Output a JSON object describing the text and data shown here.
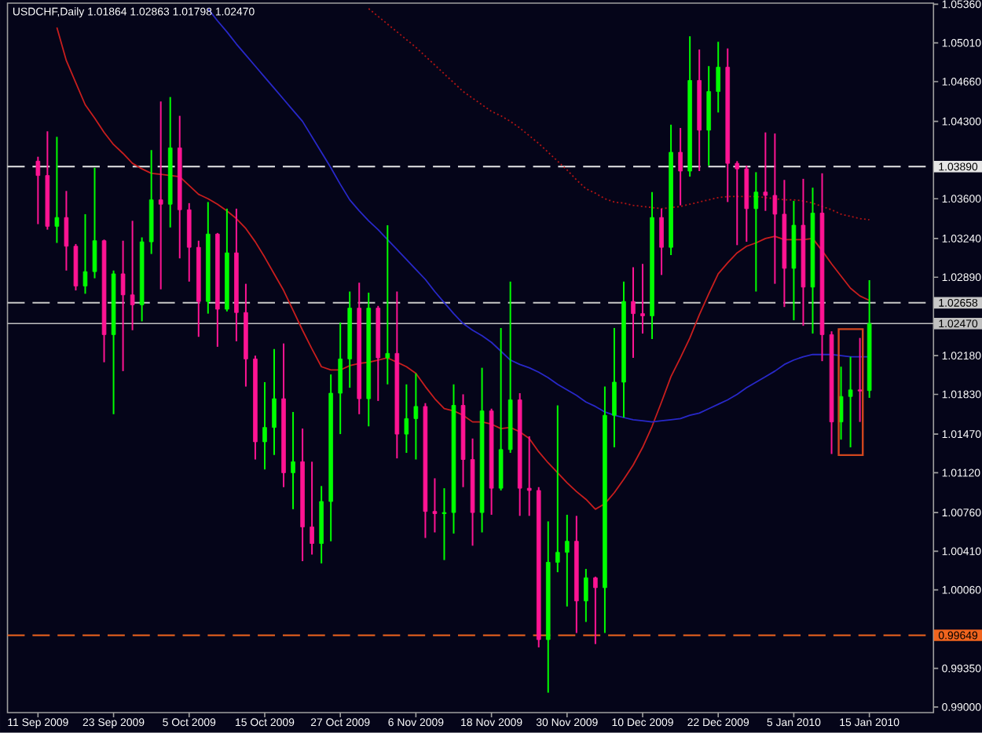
{
  "chart_data": {
    "type": "candlestick",
    "title": "USDCHF,Daily 1.01864 1.02863 1.01798 1.02470",
    "categories": [
      "11 Sep 2009",
      null,
      null,
      null,
      null,
      null,
      null,
      null,
      "23 Sep 2009",
      null,
      null,
      null,
      null,
      null,
      null,
      null,
      "5 Oct 2009",
      null,
      null,
      null,
      null,
      null,
      null,
      null,
      "15 Oct 2009",
      null,
      null,
      null,
      null,
      null,
      null,
      null,
      "27 Oct 2009",
      null,
      null,
      null,
      null,
      null,
      null,
      null,
      "6 Nov 2009",
      null,
      null,
      null,
      null,
      null,
      null,
      null,
      "18 Nov 2009",
      null,
      null,
      null,
      null,
      null,
      null,
      null,
      "30 Nov 2009",
      null,
      null,
      null,
      null,
      null,
      null,
      null,
      "10 Dec 2009",
      null,
      null,
      null,
      null,
      null,
      null,
      null,
      "22 Dec 2009",
      null,
      null,
      null,
      null,
      null,
      null,
      null,
      "5 Jan 2010",
      null,
      null,
      null,
      null,
      null,
      null,
      null,
      "15 Jan 2010"
    ],
    "ohlc": [
      [
        1.0394,
        1.0398,
        1.0337,
        1.0381
      ],
      [
        1.0381,
        1.0421,
        1.0332,
        1.0335
      ],
      [
        1.0335,
        1.0416,
        1.032,
        1.0343
      ],
      [
        1.0343,
        1.0367,
        1.0295,
        1.0317
      ],
      [
        1.0317,
        1.0319,
        1.0277,
        1.0281
      ],
      [
        1.0281,
        1.0346,
        1.0274,
        1.0294
      ],
      [
        1.0294,
        1.0388,
        1.0288,
        1.0322
      ],
      [
        1.0322,
        1.0323,
        1.0212,
        1.0237
      ],
      [
        1.0237,
        1.0295,
        1.0165,
        1.0292
      ],
      [
        1.0292,
        1.0322,
        1.0204,
        1.0273
      ],
      [
        1.0273,
        1.034,
        1.0241,
        1.0264
      ],
      [
        1.0264,
        1.0325,
        1.0249,
        1.0321
      ],
      [
        1.0321,
        1.0404,
        1.031,
        1.0359
      ],
      [
        1.0359,
        1.0448,
        1.0278,
        1.0355
      ],
      [
        1.0355,
        1.0452,
        1.0334,
        1.0406
      ],
      [
        1.0406,
        1.0435,
        1.0306,
        1.035
      ],
      [
        1.035,
        1.0356,
        1.0285,
        1.0316
      ],
      [
        1.0316,
        1.0322,
        1.0235,
        1.0267
      ],
      [
        1.0267,
        1.0357,
        1.0256,
        1.0328
      ],
      [
        1.0328,
        1.0329,
        1.0226,
        1.026
      ],
      [
        1.026,
        1.0351,
        1.0258,
        1.0311
      ],
      [
        1.0311,
        1.0351,
        1.0231,
        1.0257
      ],
      [
        1.0257,
        1.0283,
        1.019,
        1.0215
      ],
      [
        1.0215,
        1.0218,
        1.0124,
        1.014
      ],
      [
        1.014,
        1.0194,
        1.0115,
        1.0153
      ],
      [
        1.0153,
        1.0224,
        1.0128,
        1.0179
      ],
      [
        1.0179,
        1.0229,
        1.0099,
        1.0112
      ],
      [
        1.0112,
        1.0167,
        1.0079,
        1.0122
      ],
      [
        1.0122,
        1.0152,
        1.0032,
        1.0063
      ],
      [
        1.0063,
        1.0122,
        1.0038,
        1.0048
      ],
      [
        1.0048,
        1.01,
        1.003,
        1.0086
      ],
      [
        1.0086,
        1.0201,
        1.005,
        1.0184
      ],
      [
        1.0184,
        1.0248,
        1.0147,
        1.0215
      ],
      [
        1.0215,
        1.0276,
        1.0189,
        1.0261
      ],
      [
        1.0261,
        1.0284,
        1.0165,
        1.0179
      ],
      [
        1.0179,
        1.0275,
        1.0154,
        1.0261
      ],
      [
        1.0261,
        1.0263,
        1.0177,
        1.0216
      ],
      [
        1.0216,
        1.0336,
        1.0192,
        1.022
      ],
      [
        1.022,
        1.0276,
        1.0125,
        1.0147
      ],
      [
        1.0147,
        1.0192,
        1.013,
        1.0161
      ],
      [
        1.0161,
        1.0202,
        1.0124,
        1.0172
      ],
      [
        1.0172,
        1.0175,
        1.0053,
        1.0077
      ],
      [
        1.0077,
        1.0107,
        1.0058,
        1.0075
      ],
      [
        1.0075,
        1.0098,
        1.0033,
        1.0076
      ],
      [
        1.0076,
        1.0192,
        1.0057,
        1.0173
      ],
      [
        1.0173,
        1.0183,
        1.0099,
        1.0124
      ],
      [
        1.0124,
        1.0143,
        1.0046,
        1.0076
      ],
      [
        1.0076,
        1.0207,
        1.0058,
        1.0168
      ],
      [
        1.0168,
        1.017,
        1.0074,
        1.0098
      ],
      [
        1.0098,
        1.0243,
        1.0096,
        1.0133
      ],
      [
        1.0133,
        1.0285,
        1.013,
        1.0178
      ],
      [
        1.0178,
        1.0184,
        1.0073,
        1.0098
      ],
      [
        1.0098,
        1.0145,
        1.0073,
        1.0096
      ],
      [
        1.0096,
        1.0099,
        0.9954,
        0.9961
      ],
      [
        0.9961,
        1.0068,
        0.9913,
        1.0031
      ],
      [
        1.0031,
        1.0173,
        1.0022,
        1.004
      ],
      [
        1.004,
        1.0074,
        0.9991,
        1.005
      ],
      [
        1.005,
        1.0073,
        0.9967,
        0.9996
      ],
      [
        0.9996,
        1.0025,
        0.9977,
        1.0017
      ],
      [
        1.0017,
        1.0018,
        0.9957,
        1.0008
      ],
      [
        1.0008,
        1.019,
        0.9967,
        1.0164
      ],
      [
        1.0164,
        1.0243,
        1.0135,
        1.0194
      ],
      [
        1.0194,
        1.0285,
        1.0162,
        1.0267
      ],
      [
        1.0267,
        1.0298,
        1.0216,
        1.0256
      ],
      [
        1.0256,
        1.0301,
        1.0238,
        1.0254
      ],
      [
        1.0254,
        1.0366,
        1.0233,
        1.0343
      ],
      [
        1.0343,
        1.0351,
        1.0291,
        1.0316
      ],
      [
        1.0316,
        1.0427,
        1.0309,
        1.0402
      ],
      [
        1.0402,
        1.0424,
        1.0354,
        1.0385
      ],
      [
        1.0385,
        1.0507,
        1.038,
        1.0467
      ],
      [
        1.0467,
        1.0495,
        1.0385,
        1.0422
      ],
      [
        1.0422,
        1.048,
        1.039,
        1.0457
      ],
      [
        1.0457,
        1.0502,
        1.0438,
        1.0479
      ],
      [
        1.0479,
        1.0496,
        1.0357,
        1.0392
      ],
      [
        1.0392,
        1.0394,
        1.0318,
        1.0387
      ],
      [
        1.0387,
        1.039,
        1.0321,
        1.0351
      ],
      [
        1.0351,
        1.0384,
        1.0276,
        1.0366
      ],
      [
        1.0366,
        1.042,
        1.0349,
        1.0363
      ],
      [
        1.0363,
        1.0419,
        1.0283,
        1.0346
      ],
      [
        1.0346,
        1.0377,
        1.0262,
        1.0297
      ],
      [
        1.0297,
        1.0358,
        1.025,
        1.0336
      ],
      [
        1.0336,
        1.0378,
        1.0245,
        1.028
      ],
      [
        1.028,
        1.037,
        1.0238,
        1.0347
      ],
      [
        1.0347,
        1.0383,
        1.0213,
        1.0237
      ],
      [
        1.0237,
        1.024,
        1.0129,
        1.0158
      ],
      [
        1.0158,
        1.0208,
        1.0142,
        1.0181
      ],
      [
        1.0181,
        1.0217,
        1.0135,
        1.0187
      ],
      [
        1.0187,
        1.0234,
        1.0158,
        1.0186
      ],
      [
        1.01864,
        1.02863,
        1.01798,
        1.0247
      ]
    ],
    "colors": [
      "#ff1493",
      "#ff1493",
      "#00ff00",
      "#ff1493",
      "#ff1493",
      "#00ff00",
      "#00ff00",
      "#ff1493",
      "#00ff00",
      "#ff1493",
      "#ff1493",
      "#00ff00",
      "#00ff00",
      "#ff1493",
      "#00ff00",
      "#ff1493",
      "#ff1493",
      "#ff1493",
      "#00ff00",
      "#ff1493",
      "#00ff00",
      "#ff1493",
      "#ff1493",
      "#ff1493",
      "#00ff00",
      "#00ff00",
      "#ff1493",
      "#00ff00",
      "#ff1493",
      "#ff1493",
      "#00ff00",
      "#00ff00",
      "#00ff00",
      "#00ff00",
      "#ff1493",
      "#00ff00",
      "#ff1493",
      "#00ff00",
      "#ff1493",
      "#00ff00",
      "#00ff00",
      "#ff1493",
      "#ff1493",
      "#00ff00",
      "#00ff00",
      "#ff1493",
      "#ff1493",
      "#00ff00",
      "#ff1493",
      "#00ff00",
      "#00ff00",
      "#ff1493",
      "#ff1493",
      "#ff1493",
      "#00ff00",
      "#00ff00",
      "#00ff00",
      "#ff1493",
      "#00ff00",
      "#ff1493",
      "#00ff00",
      "#00ff00",
      "#00ff00",
      "#ff1493",
      "#ff1493",
      "#00ff00",
      "#ff1493",
      "#00ff00",
      "#ff1493",
      "#00ff00",
      "#ff1493",
      "#00ff00",
      "#00ff00",
      "#ff1493",
      "#ff1493",
      "#ff1493",
      "#00ff00",
      "#ff1493",
      "#ff1493",
      "#ff1493",
      "#00ff00",
      "#ff1493",
      "#00ff00",
      "#ff1493",
      "#ff1493",
      "#00ff00",
      "#00ff00",
      "#ff1493",
      "#00ff00"
    ],
    "series": [
      {
        "type": "line",
        "color": "#c81e1e",
        "values": [
          null,
          null,
          1.0515,
          1.0485,
          1.0465,
          1.0445,
          1.0433,
          1.042,
          1.0409,
          1.0401,
          1.0392,
          1.0387,
          1.0383,
          1.0382,
          1.0381,
          1.038,
          1.0372,
          1.0364,
          1.036,
          1.0355,
          1.0349,
          1.0342,
          1.0333,
          1.0321,
          1.0307,
          1.0292,
          1.0277,
          1.0259,
          1.0241,
          1.0224,
          1.0208,
          1.0205,
          1.0205,
          1.0209,
          1.0211,
          1.0212,
          1.0214,
          1.0216,
          1.0212,
          1.0208,
          1.0202,
          1.019,
          1.0179,
          1.017,
          1.0168,
          1.0164,
          1.0158,
          1.0158,
          1.0156,
          1.0152,
          1.0153,
          1.0149,
          1.0143,
          1.0131,
          1.0121,
          1.0112,
          1.0103,
          1.0095,
          1.0088,
          1.0079,
          1.0084,
          1.0094,
          1.0106,
          1.0119,
          1.0135,
          1.0154,
          1.0176,
          1.0199,
          1.0216,
          1.0234,
          1.0255,
          1.0274,
          1.0292,
          1.0302,
          1.0311,
          1.0317,
          1.032,
          1.0324,
          1.0326,
          1.0323,
          1.0323,
          1.0323,
          1.0324,
          1.0313,
          1.0301,
          1.029,
          1.0279,
          1.0272,
          1.0268
        ]
      },
      {
        "type": "line",
        "color": "#2828c8",
        "values": [
          null,
          null,
          null,
          null,
          null,
          null,
          null,
          null,
          null,
          null,
          null,
          null,
          null,
          null,
          null,
          null,
          null,
          null,
          1.0532,
          1.0521,
          1.0511,
          1.05,
          1.049,
          1.048,
          1.047,
          1.046,
          1.045,
          1.044,
          1.043,
          1.0416,
          1.0402,
          1.0388,
          1.0373,
          1.0359,
          1.0349,
          1.034,
          1.0332,
          1.0323,
          1.0314,
          1.0305,
          1.0296,
          1.0287,
          1.0276,
          1.0266,
          1.0256,
          1.0247,
          1.0241,
          1.0236,
          1.023,
          1.0222,
          1.0214,
          1.021,
          1.0207,
          1.0203,
          1.0198,
          1.0192,
          1.0187,
          1.0182,
          1.0176,
          1.0172,
          1.0167,
          1.0164,
          1.0162,
          1.016,
          1.0159,
          1.0158,
          1.0159,
          1.016,
          1.0161,
          1.0164,
          1.0166,
          1.017,
          1.0174,
          1.0178,
          1.0183,
          1.0189,
          1.0194,
          1.0199,
          1.0204,
          1.021,
          1.0214,
          1.0217,
          1.0219,
          1.0219,
          1.0219,
          1.0218,
          1.0217,
          1.0217,
          1.0217
        ]
      },
      {
        "type": "line",
        "color": "#b41414",
        "line_style": "dotted",
        "values": [
          null,
          null,
          null,
          null,
          null,
          null,
          null,
          null,
          null,
          null,
          null,
          null,
          null,
          null,
          null,
          null,
          null,
          null,
          null,
          null,
          null,
          null,
          null,
          null,
          null,
          null,
          null,
          null,
          null,
          null,
          null,
          null,
          null,
          null,
          null,
          1.0532,
          1.0525,
          1.0518,
          1.0511,
          1.0504,
          1.0497,
          1.0489,
          1.0481,
          1.0473,
          1.0465,
          1.0457,
          1.0451,
          1.0445,
          1.0439,
          1.0435,
          1.043,
          1.0424,
          1.0417,
          1.041,
          1.0402,
          1.0394,
          1.0386,
          1.0377,
          1.0369,
          1.0365,
          1.036,
          1.0357,
          1.0356,
          1.0354,
          1.0353,
          1.0352,
          1.0351,
          1.0352,
          1.0353,
          1.0355,
          1.0357,
          1.0359,
          1.0361,
          1.0362,
          1.0362,
          1.0362,
          1.0362,
          1.0361,
          1.036,
          1.0359,
          1.0359,
          1.0358,
          1.0356,
          1.0353,
          1.035,
          1.0346,
          1.0344,
          1.0342,
          1.0341
        ]
      }
    ],
    "ylim": [
      0.9895,
      1.0537
    ],
    "yticks": [
      {
        "value": 0.99,
        "label": "0.99000"
      },
      {
        "value": 0.9935,
        "label": "0.99350"
      },
      {
        "value": 1.0006,
        "label": "1.00060"
      },
      {
        "value": 1.0041,
        "label": "1.00410"
      },
      {
        "value": 1.0076,
        "label": "1.00760"
      },
      {
        "value": 1.0112,
        "label": "1.01120"
      },
      {
        "value": 1.0147,
        "label": "1.01470"
      },
      {
        "value": 1.0183,
        "label": "1.01830"
      },
      {
        "value": 1.0218,
        "label": "1.02180"
      },
      {
        "value": 1.0289,
        "label": "1.02890"
      },
      {
        "value": 1.0324,
        "label": "1.03240"
      },
      {
        "value": 1.036,
        "label": "1.03600"
      },
      {
        "value": 1.043,
        "label": "1.04300"
      },
      {
        "value": 1.0466,
        "label": "1.04660"
      },
      {
        "value": 1.0501,
        "label": "1.05010"
      },
      {
        "value": 1.0536,
        "label": "1.05360"
      }
    ],
    "ref_lines": [
      {
        "axis": "y",
        "value": 1.0389,
        "label": "1.03890",
        "color": "#e6e6e6",
        "line_style": "dashed"
      },
      {
        "axis": "y",
        "value": 1.02658,
        "label": "1.02658",
        "color": "#c8c8c8",
        "line_style": "dashed"
      },
      {
        "axis": "y",
        "value": 1.0247,
        "label": "1.02470",
        "color": "#c0c0c0",
        "line_style": "solid"
      },
      {
        "axis": "y",
        "value": 0.99649,
        "label": "0.99649",
        "color": "#f0641e",
        "line_style": "dashed"
      }
    ]
  }
}
